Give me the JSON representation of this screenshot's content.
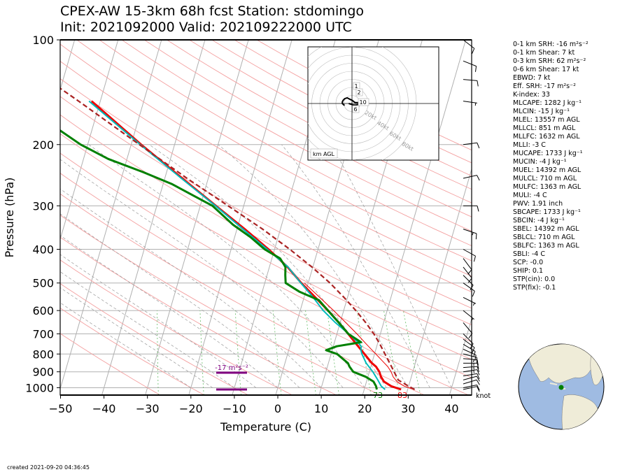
{
  "title": {
    "line1": "CPEX-AW 15-3km  68h fcst  Station: stdomingo",
    "line2": "Init: 2021092000  Valid: 202109222000 UTC"
  },
  "chart_data": {
    "type": "skew-t",
    "xlabel": "Temperature (C)",
    "ylabel": "Pressure (hPa)",
    "xlim": [
      -50,
      45
    ],
    "ylim": [
      1050,
      100
    ],
    "y_scale": "log",
    "xticks": [
      -50,
      -40,
      -30,
      -20,
      -10,
      0,
      10,
      20,
      30,
      40
    ],
    "yticks": [
      100,
      200,
      300,
      400,
      500,
      600,
      700,
      800,
      900,
      1000
    ],
    "xtick_labels": [
      "−50",
      "−40",
      "−30",
      "−20",
      "−10",
      "0",
      "10",
      "20",
      "30",
      "40"
    ],
    "ytick_labels": [
      "100",
      "200",
      "300",
      "400",
      "500",
      "600",
      "700",
      "800",
      "900",
      "1000"
    ],
    "series": [
      {
        "role": "temperature",
        "color": "#ee0000",
        "p": [
          1012,
          990,
          960,
          930,
          900,
          870,
          850,
          800,
          750,
          700,
          650,
          600,
          550,
          500,
          450,
          400,
          350,
          300,
          250,
          200,
          150
        ],
        "t": [
          28.5,
          26,
          24,
          23,
          22.3,
          21.2,
          20,
          17.7,
          15.2,
          12.6,
          9.7,
          6.4,
          2.6,
          -1.6,
          -5.8,
          -11.4,
          -18.2,
          -26.4,
          -36,
          -47.7,
          -62
        ]
      },
      {
        "role": "virtual-temperature",
        "color": "#ee0000",
        "p": [
          1012,
          990,
          960,
          930,
          900,
          870,
          850,
          800,
          750,
          700,
          650,
          600,
          550,
          500
        ],
        "t": [
          31.6,
          29,
          27,
          25.8,
          25,
          23.9,
          22.9,
          20.3,
          17.5,
          14.6,
          11.3,
          7.7,
          3.6,
          -0.9
        ]
      },
      {
        "role": "wet-bulb",
        "color": "#00bbbb",
        "p": [
          1012,
          990,
          950,
          900,
          850,
          800,
          780,
          760,
          740,
          700,
          650,
          600,
          550,
          500,
          450,
          400,
          350,
          300,
          250,
          200,
          150
        ],
        "t": [
          24.8,
          23.7,
          22.5,
          20.8,
          18.7,
          17.1,
          16.6,
          16.4,
          15.4,
          12.7,
          8.9,
          5.3,
          2.1,
          -1.7,
          -5.7,
          -11.7,
          -18.6,
          -26.5,
          -36.2,
          -47.9,
          -62.6
        ]
      },
      {
        "role": "dewpoint",
        "color": "#008000",
        "p": [
          1012,
          990,
          960,
          930,
          900,
          870,
          850,
          800,
          780,
          760,
          740,
          700,
          650,
          600,
          560,
          530,
          500,
          475,
          450,
          425,
          400,
          370,
          340,
          300,
          260,
          240,
          220,
          200,
          150,
          130,
          120,
          110
        ],
        "t": [
          22.9,
          22.5,
          21.6,
          19.5,
          16.3,
          15.1,
          14.5,
          11.4,
          8.6,
          10.8,
          16.1,
          12.6,
          9.7,
          6.4,
          3.6,
          -1.4,
          -5.2,
          -5.8,
          -6.3,
          -8.1,
          -12.3,
          -16.2,
          -21.2,
          -27.2,
          -37.9,
          -45.4,
          -54.3,
          -61.6,
          -79.1,
          -83.5,
          -89.3,
          -95.1
        ]
      },
      {
        "role": "parcel",
        "color": "#aa2222",
        "p": [
          1012,
          990,
          950,
          900,
          850,
          800,
          750,
          700,
          650,
          600,
          550,
          500,
          450,
          400,
          350,
          300,
          250,
          200,
          150,
          120,
          100
        ],
        "t": [
          31.6,
          30,
          27.2,
          25.7,
          24.1,
          22.4,
          20.6,
          18.5,
          15.9,
          12.8,
          9.2,
          5,
          -0.2,
          -6.5,
          -14.1,
          -23.6,
          -34.9,
          -48.1,
          -65,
          -78.4,
          -91
        ]
      }
    ],
    "surface_labels": {
      "dewpoint": "73",
      "temperature": "83"
    },
    "srh_annotation": "-17 m²s⁻²",
    "wind_unit_label": "knot",
    "winds": [
      {
        "p": 1012,
        "u": -9,
        "v": -2
      },
      {
        "p": 1000,
        "u": -10,
        "v": -2
      },
      {
        "p": 975,
        "u": -10,
        "v": -3
      },
      {
        "p": 950,
        "u": -11,
        "v": -3
      },
      {
        "p": 925,
        "u": -12,
        "v": -2
      },
      {
        "p": 900,
        "u": -13,
        "v": -2
      },
      {
        "p": 875,
        "u": -13,
        "v": -1
      },
      {
        "p": 850,
        "u": -14,
        "v": 0
      },
      {
        "p": 825,
        "u": -14,
        "v": 1
      },
      {
        "p": 800,
        "u": -12,
        "v": 3
      },
      {
        "p": 775,
        "u": -11,
        "v": 5
      },
      {
        "p": 750,
        "u": -10,
        "v": 6
      },
      {
        "p": 725,
        "u": -8,
        "v": 6
      },
      {
        "p": 700,
        "u": -7,
        "v": 7
      },
      {
        "p": 650,
        "u": -5,
        "v": 6
      },
      {
        "p": 600,
        "u": -5,
        "v": 4
      },
      {
        "p": 550,
        "u": -6,
        "v": 3
      },
      {
        "p": 500,
        "u": -7,
        "v": 5
      },
      {
        "p": 475,
        "u": -8,
        "v": 8
      },
      {
        "p": 450,
        "u": -7,
        "v": 9
      },
      {
        "p": 425,
        "u": -6,
        "v": 8
      },
      {
        "p": 400,
        "u": -9,
        "v": 5
      },
      {
        "p": 350,
        "u": -12,
        "v": 4
      },
      {
        "p": 300,
        "u": -11,
        "v": 0
      },
      {
        "p": 250,
        "u": -9,
        "v": -2
      },
      {
        "p": 200,
        "u": -8,
        "v": -1
      },
      {
        "p": 150,
        "u": -7,
        "v": 1
      },
      {
        "p": 130,
        "u": -12,
        "v": 1
      },
      {
        "p": 115,
        "u": -10,
        "v": 4
      },
      {
        "p": 100,
        "u": -9,
        "v": 7
      }
    ],
    "hodograph": {
      "ring_labels": [
        "20kt",
        "40kt",
        "60kt",
        "80kt"
      ],
      "height_labels": [
        "1",
        "2",
        "10",
        "6"
      ],
      "legend": "km AGL",
      "u": [
        -9,
        -10,
        -11,
        -12,
        -12,
        -11,
        -9,
        -6,
        -4,
        -2,
        0,
        4,
        9,
        8,
        5,
        2,
        -1,
        -4
      ],
      "v": [
        -2,
        -2,
        -1,
        0,
        2,
        4,
        6,
        7,
        6,
        5,
        4,
        1,
        1,
        -1,
        -2,
        -2,
        -1,
        0
      ]
    }
  },
  "indices": [
    "0-1 km SRH: -16 m²s⁻²",
    "0-1 km Shear: 7 kt",
    "0-3 km SRH: 62 m²s⁻²",
    "0-6 km Shear: 17 kt",
    "EBWD: 7 kt",
    "Eff. SRH: -17 m²s⁻²",
    "K-index: 33",
    "MLCAPE: 1282 J kg⁻¹",
    "MLCIN: -15 J kg⁻¹",
    "MLEL: 13557 m AGL",
    "MLLCL: 851 m AGL",
    "MLLFC: 1632 m AGL",
    "MLLI: -3 C",
    "MUCAPE: 1733 J kg⁻¹",
    "MUCIN: -4 J kg⁻¹",
    "MUEL: 14392 m AGL",
    "MULCL: 710 m AGL",
    "MULFC: 1363 m AGL",
    "MULI: -4 C",
    "PWV: 1.91 inch",
    "SBCAPE: 1733 J kg⁻¹",
    "SBCIN: -4 J kg⁻¹",
    "SBEL: 14392 m AGL",
    "SBLCL: 710 m AGL",
    "SBLFC: 1363 m AGL",
    "SBLI: -4 C",
    "SCP: -0.0",
    "SHIP: 0.1",
    "STP(cin): 0.0",
    "STP(fix): -0.1"
  ],
  "created": "created 2021-09-20 04:36:45",
  "colors": {
    "temperature": "#ee0000",
    "dewpoint": "#008000",
    "wetbulb": "#00bbbb",
    "parcel": "#aa2222",
    "srh": "#800080",
    "ocean": "#9fbbe2",
    "land": "#efecd8"
  }
}
